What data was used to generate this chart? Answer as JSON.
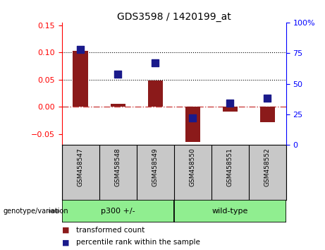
{
  "title": "GDS3598 / 1420199_at",
  "samples": [
    "GSM458547",
    "GSM458548",
    "GSM458549",
    "GSM458550",
    "GSM458551",
    "GSM458552"
  ],
  "transformed_count": [
    0.103,
    0.005,
    0.048,
    -0.065,
    -0.008,
    -0.028
  ],
  "percentile_rank_pct": [
    78,
    58,
    67,
    22,
    34,
    38
  ],
  "bar_color": "#8B1A1A",
  "dot_color": "#1A1A8B",
  "ylim_left": [
    -0.07,
    0.155
  ],
  "ylim_right": [
    0,
    100
  ],
  "yticks_left": [
    -0.05,
    0.0,
    0.05,
    0.1,
    0.15
  ],
  "yticks_right": [
    0,
    25,
    50,
    75,
    100
  ],
  "zero_line_color": "#CC4444",
  "dotted_line_color": "black",
  "bg_color": "#FFFFFF",
  "sample_area_color": "#C8C8C8",
  "group1_label": "p300 +/-",
  "group2_label": "wild-type",
  "group_color": "#90EE90",
  "legend_tc_label": "transformed count",
  "legend_pr_label": "percentile rank within the sample",
  "genotype_label": "genotype/variation",
  "bar_width": 0.4,
  "dot_size": 50
}
